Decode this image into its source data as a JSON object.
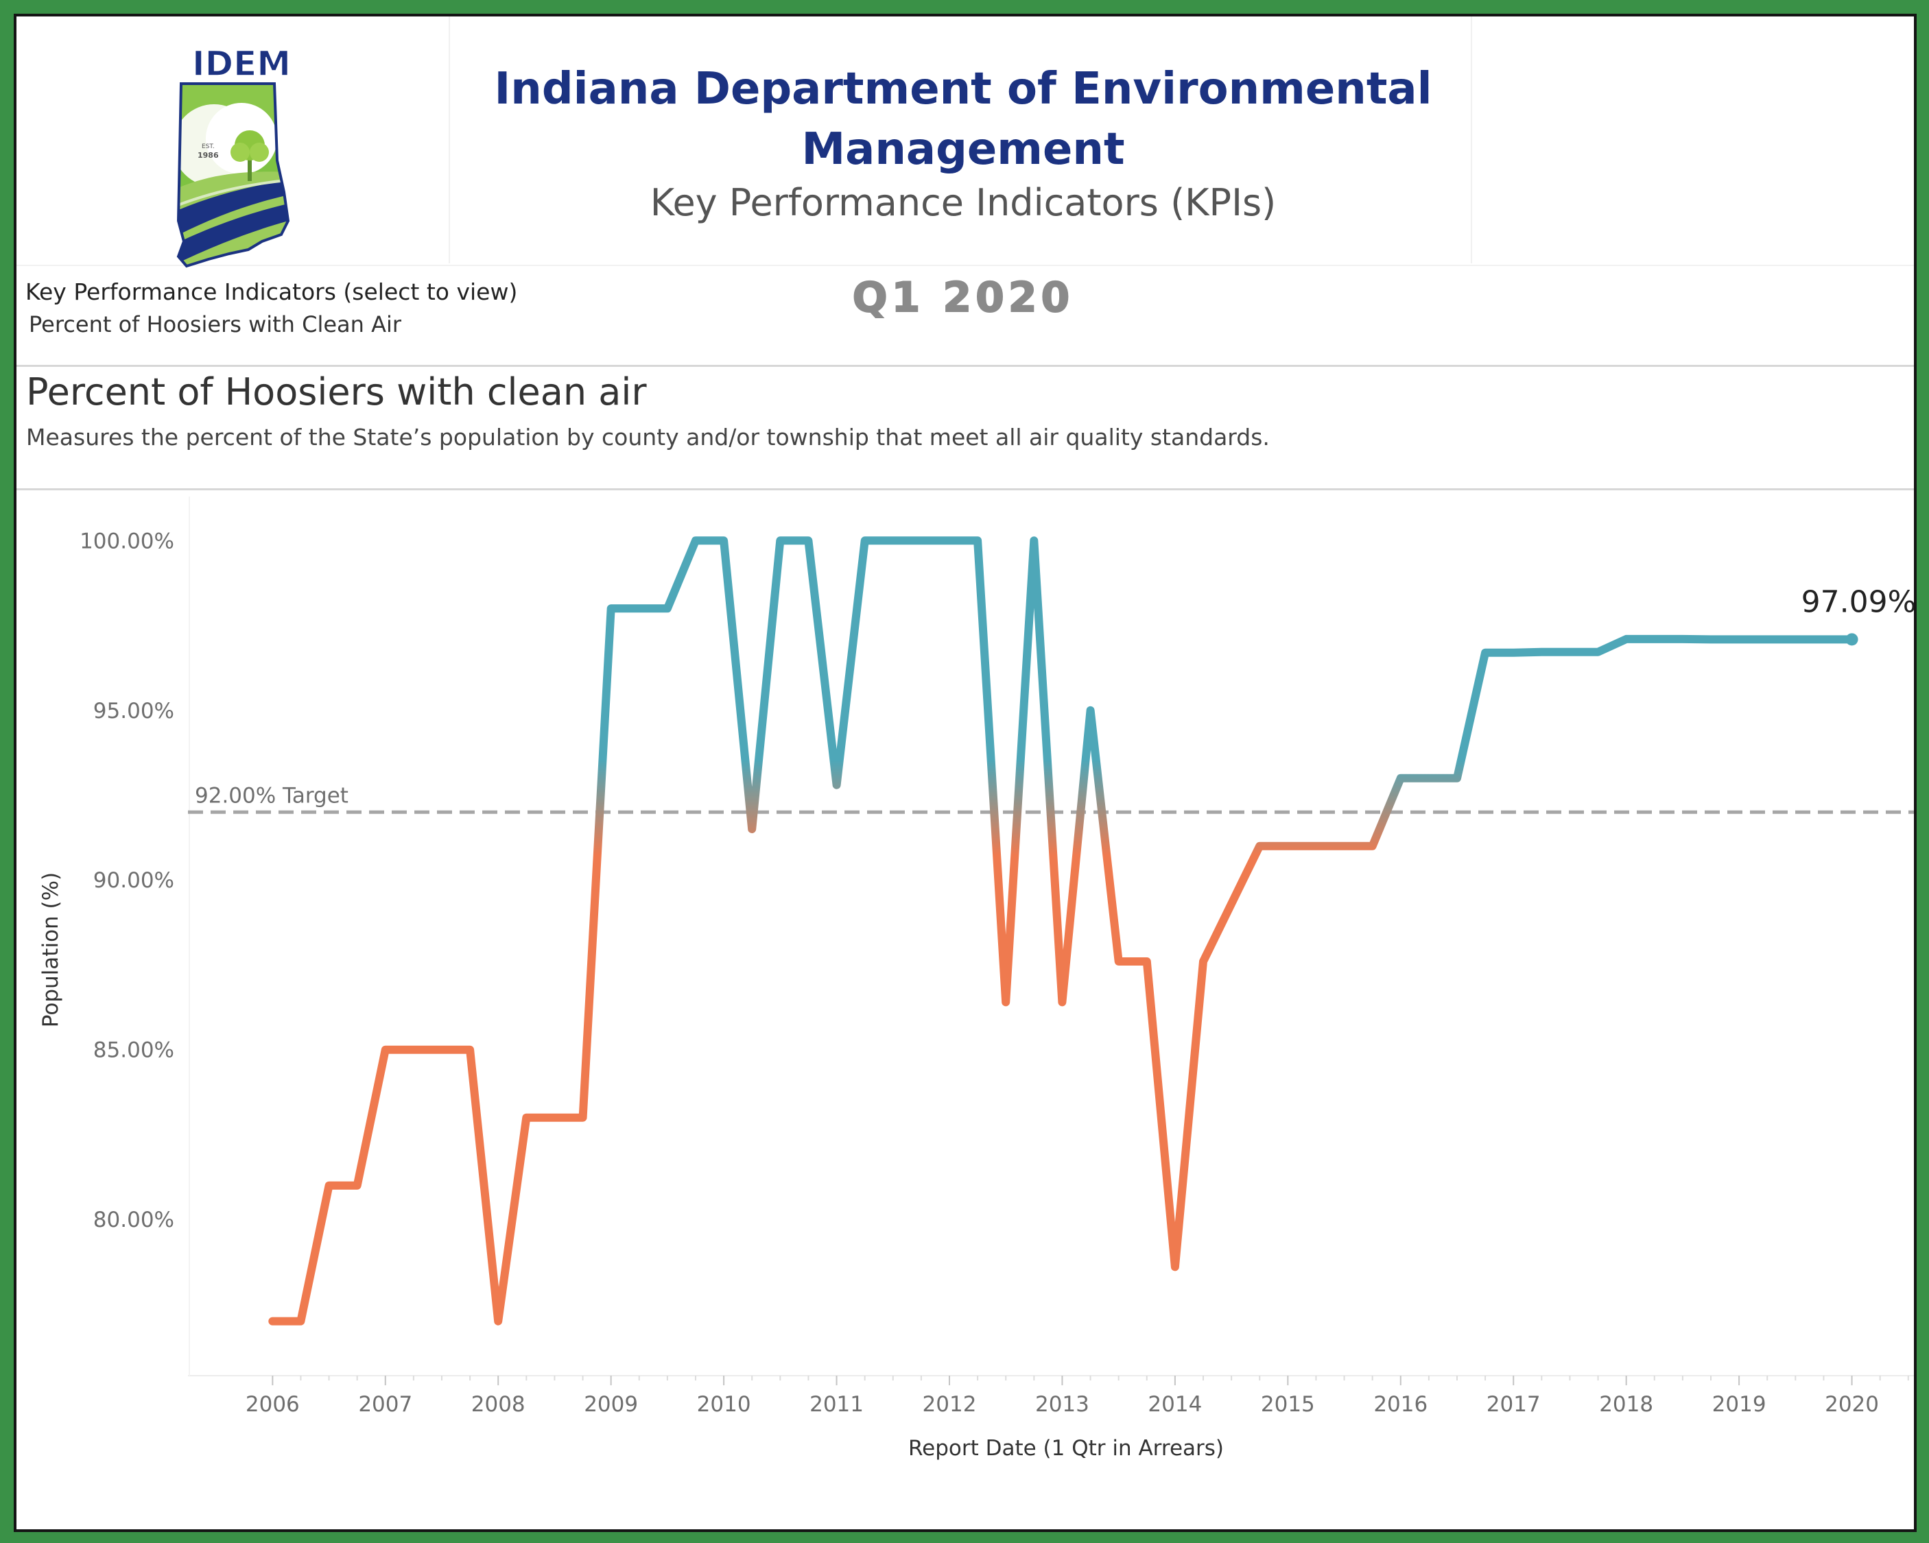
{
  "header": {
    "org_title": "Indiana Department of Environmental Management",
    "subtitle": "Key Performance Indicators (KPIs)",
    "period": "Q1  2020",
    "logo": {
      "acronym": "IDEM",
      "est": "EST.",
      "year": "1986"
    }
  },
  "selector": {
    "label": "Key Performance Indicators (select to view)",
    "value": "Percent of Hoosiers with Clean Air"
  },
  "kpi": {
    "title": "Percent of Hoosiers with clean air",
    "description": "Measures the percent of the State’s population by county and/or township that meet all air quality standards."
  },
  "colors": {
    "below_target": "#ef7a4f",
    "above_target": "#4ea7b8",
    "title_blue": "#1b3281",
    "target_line": "#a6a6a6",
    "frame_green": "#3a9147"
  },
  "chart_data": {
    "type": "line",
    "title": "Percent of Hoosiers with clean air",
    "xlabel": "Report Date (1 Qtr in Arrears)",
    "ylabel": "Population (%)",
    "ylim": [
      75.8,
      101.3
    ],
    "xlim": [
      2005.25,
      2020.55
    ],
    "yticks": [
      80,
      85,
      90,
      95,
      100
    ],
    "ytick_labels": [
      "80.00%",
      "85.00%",
      "90.00%",
      "95.00%",
      "100.00%"
    ],
    "xticks": [
      2006,
      2007,
      2008,
      2009,
      2010,
      2011,
      2012,
      2013,
      2014,
      2015,
      2016,
      2017,
      2018,
      2019,
      2020
    ],
    "xtick_labels": [
      "2006",
      "2007",
      "2008",
      "2009",
      "2010",
      "2011",
      "2012",
      "2013",
      "2014",
      "2015",
      "2016",
      "2017",
      "2018",
      "2019",
      "2020"
    ],
    "target": {
      "value": 92.0,
      "label": "92.00% Target"
    },
    "last_label": "97.09%",
    "series": [
      {
        "name": "Percent of Hoosiers with clean air",
        "x": [
          2006.0,
          2006.25,
          2006.5,
          2006.75,
          2007.0,
          2007.25,
          2007.5,
          2007.75,
          2008.0,
          2008.25,
          2008.5,
          2008.75,
          2009.0,
          2009.25,
          2009.5,
          2009.75,
          2010.0,
          2010.25,
          2010.5,
          2010.75,
          2011.0,
          2011.25,
          2011.5,
          2011.75,
          2012.0,
          2012.25,
          2012.5,
          2012.75,
          2013.0,
          2013.25,
          2013.5,
          2013.75,
          2014.0,
          2014.25,
          2014.5,
          2014.75,
          2015.0,
          2015.25,
          2015.5,
          2015.75,
          2016.0,
          2016.25,
          2016.5,
          2016.75,
          2017.0,
          2017.25,
          2017.5,
          2017.75,
          2018.0,
          2018.25,
          2018.5,
          2018.75,
          2019.0,
          2019.25,
          2019.5,
          2019.75,
          2020.0
        ],
        "values": [
          77.0,
          77.0,
          81.0,
          81.0,
          85.0,
          85.0,
          85.0,
          85.0,
          77.0,
          83.0,
          83.0,
          83.0,
          98.0,
          98.0,
          98.0,
          100.0,
          100.0,
          91.5,
          100.0,
          100.0,
          92.8,
          100.0,
          100.0,
          100.0,
          100.0,
          100.0,
          86.4,
          100.0,
          86.4,
          95.0,
          87.6,
          87.6,
          78.6,
          87.6,
          89.3,
          91.0,
          91.0,
          91.0,
          91.0,
          91.0,
          93.0,
          93.0,
          93.0,
          96.7,
          96.7,
          96.72,
          96.72,
          96.72,
          97.1,
          97.1,
          97.1,
          97.09,
          97.09,
          97.09,
          97.09,
          97.09,
          97.09
        ]
      }
    ]
  }
}
